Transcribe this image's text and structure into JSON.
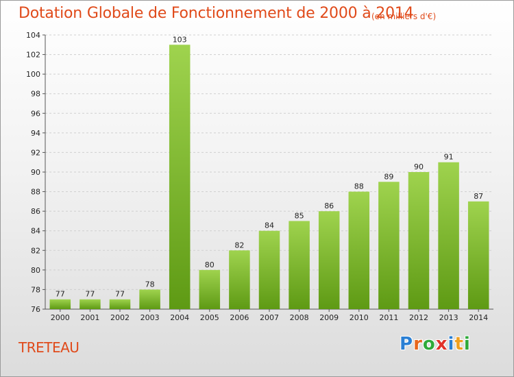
{
  "header": {
    "title": "Dotation Globale de Fonctionnement de 2000 à 2014",
    "unit": "(en milliers d'€)"
  },
  "footer": {
    "commune": "TRETEAU",
    "logo_letters": [
      "P",
      "r",
      "o",
      "x",
      "i",
      "t",
      "i"
    ],
    "logo_colors": [
      "#2a7fd4",
      "#e8661d",
      "#2faa3a",
      "#e2322a",
      "#2a7fd4",
      "#f0a020",
      "#2faa3a"
    ]
  },
  "chart_data": {
    "type": "bar",
    "title": "Dotation Globale de Fonctionnement de 2000 à 2014",
    "subtitle": "(en milliers d'€)",
    "xlabel": "",
    "ylabel": "",
    "categories": [
      "2000",
      "2001",
      "2002",
      "2003",
      "2004",
      "2005",
      "2006",
      "2007",
      "2008",
      "2009",
      "2010",
      "2011",
      "2012",
      "2013",
      "2014"
    ],
    "values": [
      77,
      77,
      77,
      78,
      103,
      80,
      82,
      84,
      85,
      86,
      88,
      89,
      90,
      91,
      87
    ],
    "ylim": [
      76,
      104
    ],
    "yticks": [
      76,
      78,
      80,
      82,
      84,
      86,
      88,
      90,
      92,
      94,
      96,
      98,
      100,
      102,
      104
    ],
    "grid": true,
    "bar_color": "#8cc63f"
  }
}
